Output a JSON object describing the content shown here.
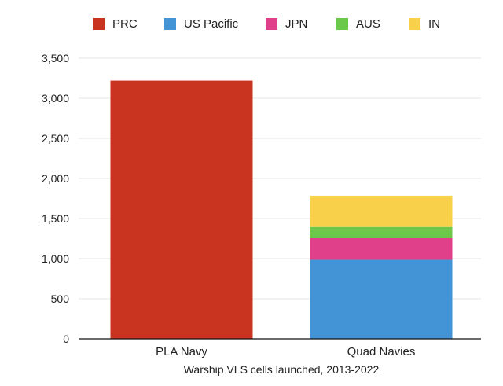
{
  "chart_data": {
    "type": "bar",
    "stacked": true,
    "title": "",
    "xlabel": "Warship VLS cells launched, 2013-2022",
    "ylabel": "",
    "ylim": [
      0,
      3500
    ],
    "yticks": [
      0,
      500,
      1000,
      1500,
      2000,
      2500,
      3000,
      3500
    ],
    "ytick_labels": [
      "0",
      "500",
      "1,000",
      "1,500",
      "2,000",
      "2,500",
      "3,000",
      "3,500"
    ],
    "grid": true,
    "legend_position": "top",
    "categories": [
      "PLA Navy",
      "Quad Navies"
    ],
    "series": [
      {
        "name": "PRC",
        "color": "#c8341f",
        "values": [
          3220,
          0
        ]
      },
      {
        "name": "US Pacific",
        "color": "#4294d6",
        "values": [
          0,
          985
        ]
      },
      {
        "name": "JPN",
        "color": "#e0408a",
        "values": [
          0,
          270
        ]
      },
      {
        "name": "AUS",
        "color": "#6cc84a",
        "values": [
          0,
          140
        ]
      },
      {
        "name": "IN",
        "color": "#f8d04a",
        "values": [
          0,
          390
        ]
      }
    ]
  }
}
